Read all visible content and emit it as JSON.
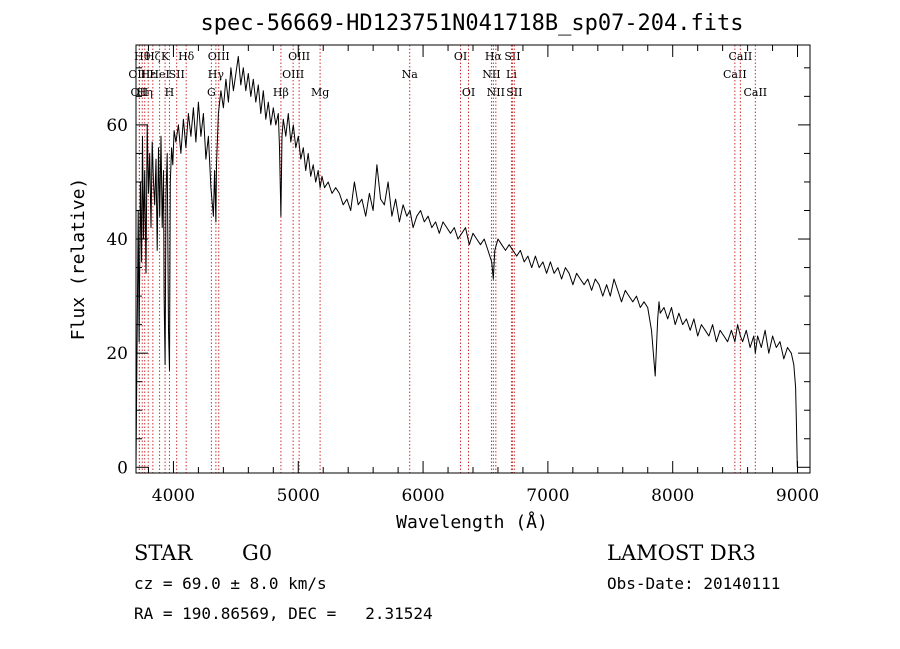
{
  "chart_data": {
    "type": "line",
    "title": "spec-56669-HD123751N041718B_sp07-204.fits",
    "xlabel": "Wavelength (Å)",
    "ylabel": "Flux (relative)",
    "xlim": [
      3700,
      9100
    ],
    "ylim": [
      -1,
      74
    ],
    "x_ticks": [
      4000,
      5000,
      6000,
      7000,
      8000,
      9000
    ],
    "y_ticks": [
      0,
      20,
      40,
      60
    ],
    "series": [
      {
        "name": "Flux",
        "x": [
          3700,
          3705,
          3712,
          3718,
          3725,
          3735,
          3745,
          3752,
          3760,
          3770,
          3780,
          3790,
          3800,
          3810,
          3820,
          3830,
          3840,
          3850,
          3860,
          3870,
          3880,
          3890,
          3900,
          3910,
          3920,
          3925,
          3933,
          3940,
          3950,
          3960,
          3968,
          3975,
          3985,
          3995,
          4005,
          4020,
          4040,
          4060,
          4080,
          4100,
          4120,
          4140,
          4160,
          4180,
          4200,
          4220,
          4240,
          4260,
          4280,
          4300,
          4320,
          4330,
          4340,
          4345,
          4360,
          4380,
          4400,
          4420,
          4440,
          4460,
          4480,
          4500,
          4520,
          4540,
          4560,
          4580,
          4600,
          4620,
          4640,
          4660,
          4680,
          4700,
          4720,
          4740,
          4760,
          4780,
          4800,
          4820,
          4840,
          4850,
          4861,
          4870,
          4880,
          4900,
          4920,
          4940,
          4960,
          4980,
          5000,
          5020,
          5040,
          5060,
          5080,
          5100,
          5120,
          5140,
          5160,
          5175,
          5190,
          5210,
          5240,
          5270,
          5300,
          5330,
          5360,
          5390,
          5420,
          5450,
          5480,
          5510,
          5540,
          5570,
          5600,
          5630,
          5660,
          5690,
          5720,
          5750,
          5780,
          5810,
          5840,
          5870,
          5895,
          5920,
          5950,
          5980,
          6010,
          6040,
          6070,
          6100,
          6130,
          6160,
          6190,
          6220,
          6250,
          6280,
          6310,
          6340,
          6370,
          6400,
          6430,
          6460,
          6490,
          6520,
          6550,
          6563,
          6575,
          6600,
          6630,
          6660,
          6690,
          6720,
          6750,
          6780,
          6810,
          6840,
          6870,
          6900,
          6930,
          6960,
          6990,
          7020,
          7050,
          7080,
          7110,
          7140,
          7170,
          7200,
          7230,
          7260,
          7290,
          7320,
          7350,
          7380,
          7410,
          7440,
          7470,
          7500,
          7530,
          7560,
          7590,
          7620,
          7650,
          7680,
          7710,
          7740,
          7770,
          7800,
          7830,
          7860,
          7880,
          7890,
          7900,
          7930,
          7960,
          7990,
          8020,
          8050,
          8080,
          8110,
          8140,
          8170,
          8200,
          8230,
          8260,
          8290,
          8320,
          8350,
          8380,
          8410,
          8440,
          8470,
          8498,
          8520,
          8542,
          8560,
          8590,
          8620,
          8650,
          8662,
          8680,
          8710,
          8740,
          8770,
          8800,
          8830,
          8860,
          8890,
          8920,
          8950,
          8970,
          8985,
          8992,
          8998
        ],
        "values": [
          0,
          12,
          30,
          45,
          22,
          50,
          36,
          58,
          40,
          52,
          34,
          60,
          48,
          55,
          42,
          57,
          50,
          46,
          54,
          38,
          56,
          44,
          58,
          42,
          52,
          30,
          18,
          48,
          55,
          24,
          17,
          50,
          56,
          53,
          59,
          57,
          60,
          55,
          61,
          56,
          62,
          58,
          63,
          57,
          64,
          58,
          62,
          54,
          58,
          49,
          44,
          52,
          43,
          53,
          62,
          66,
          63,
          68,
          64,
          70,
          66,
          69,
          72,
          67,
          70,
          66,
          69,
          65,
          68,
          64,
          67,
          62,
          66,
          61,
          64,
          60,
          63,
          60,
          62,
          56,
          44,
          58,
          61,
          58,
          62,
          57,
          60,
          56,
          58,
          54,
          56,
          52,
          55,
          51,
          53,
          50,
          52,
          49,
          51,
          49,
          50,
          48,
          49,
          48,
          46,
          47,
          45,
          50,
          46,
          47,
          44,
          48,
          45,
          53,
          47,
          46,
          50,
          44,
          47,
          43,
          46,
          44,
          45,
          42,
          44,
          45,
          43,
          44,
          42,
          43,
          41,
          43,
          42,
          41,
          42,
          40,
          41,
          42,
          39,
          41,
          40,
          39,
          40,
          38,
          36,
          33,
          38,
          40,
          39,
          38,
          39,
          38,
          37,
          38,
          36,
          37,
          35,
          37,
          35,
          36,
          34,
          36,
          34,
          35,
          33,
          35,
          34,
          32,
          34,
          33,
          32,
          33,
          31,
          33,
          32,
          30,
          32,
          30,
          33,
          31,
          29,
          31,
          30,
          29,
          30,
          28,
          29,
          28,
          24,
          16,
          26,
          29,
          27,
          28,
          26,
          28,
          25,
          27,
          25,
          26,
          24,
          26,
          23,
          25,
          24,
          23,
          25,
          22,
          24,
          23,
          22,
          24,
          22,
          25,
          23,
          22,
          24,
          21,
          23,
          20,
          23,
          21,
          24,
          20,
          23,
          21,
          22,
          19,
          21,
          20,
          18,
          14,
          7,
          0
        ]
      }
    ],
    "line_color": "#000000",
    "marker_color": "#cc3333",
    "lines": [
      {
        "wl": 3727,
        "label": "OII",
        "row": 2
      },
      {
        "wl": 3727,
        "label": "OIII",
        "row": 1
      },
      {
        "wl": 3750,
        "label": "Hθ",
        "row": 0
      },
      {
        "wl": 3770,
        "label": "Hη",
        "row": 2
      },
      {
        "wl": 3798,
        "label": "Hε",
        "row": 1
      },
      {
        "wl": 3835,
        "label": "Hζ",
        "row": 0
      },
      {
        "wl": 3889,
        "label": "HeI",
        "row": 1
      },
      {
        "wl": 3933,
        "label": "K",
        "row": 0
      },
      {
        "wl": 3968,
        "label": "H",
        "row": 2
      },
      {
        "wl": 4026,
        "label": "SII",
        "row": 1
      },
      {
        "wl": 4102,
        "label": "Hδ",
        "row": 0
      },
      {
        "wl": 4304,
        "label": "G",
        "row": 2
      },
      {
        "wl": 4340,
        "label": "Hγ",
        "row": 1
      },
      {
        "wl": 4363,
        "label": "OIII",
        "row": 0
      },
      {
        "wl": 4861,
        "label": "Hβ",
        "row": 2
      },
      {
        "wl": 4959,
        "label": "OIII",
        "row": 1
      },
      {
        "wl": 5007,
        "label": "OIII",
        "row": 0
      },
      {
        "wl": 5175,
        "label": "Mg",
        "row": 2
      },
      {
        "wl": 5893,
        "label": "Na",
        "row": 1
      },
      {
        "wl": 6300,
        "label": "OI",
        "row": 0
      },
      {
        "wl": 6364,
        "label": "OI",
        "row": 2
      },
      {
        "wl": 6548,
        "label": "NII",
        "row": 1
      },
      {
        "wl": 6563,
        "label": "Hα",
        "row": 0
      },
      {
        "wl": 6583,
        "label": "NII",
        "row": 2
      },
      {
        "wl": 6708,
        "label": "Li",
        "row": 1
      },
      {
        "wl": 6716,
        "label": "SII",
        "row": 0
      },
      {
        "wl": 6731,
        "label": "SII",
        "row": 2
      },
      {
        "wl": 8498,
        "label": "CaII",
        "row": 1
      },
      {
        "wl": 8542,
        "label": "CaII",
        "row": 0
      },
      {
        "wl": 8662,
        "label": "CaII",
        "row": 2
      }
    ]
  },
  "info": {
    "class_label": "STAR",
    "subclass": "G0",
    "survey": "LAMOST DR3",
    "cz": "cz = 69.0 ± 8.0 km/s",
    "obs_date": "Obs-Date: 20140111",
    "coords": "RA = 190.86569, DEC =   2.31524"
  }
}
